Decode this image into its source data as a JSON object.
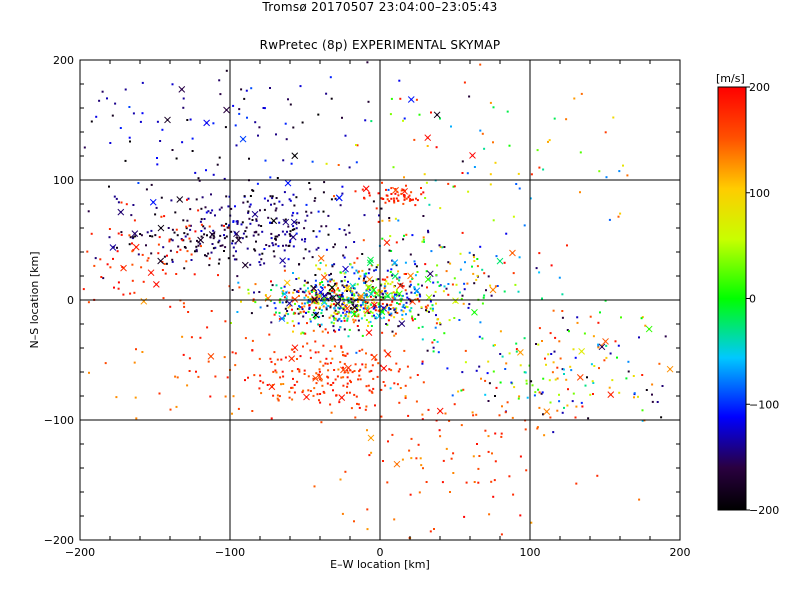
{
  "chart_data": {
    "type": "scatter",
    "title": "Tromsø 20170507 23:04:00–23:05:43",
    "subtitle": "RwPretec (8p) EXPERIMENTAL SKYMAP",
    "xlabel": "E–W location [km]",
    "ylabel": "N–S location [km]",
    "xlim": [
      -200,
      200
    ],
    "ylim": [
      -200,
      200
    ],
    "xticks": [
      "−200",
      "−100",
      "0",
      "100",
      "200"
    ],
    "yticks": [
      "200",
      "100",
      "0",
      "−100",
      "−200"
    ],
    "grid_lines": [
      -100,
      0,
      100
    ],
    "colorbar": {
      "label": "[m/s]",
      "range": [
        -200,
        200
      ],
      "ticks": [
        "200",
        "100",
        "0",
        "−100",
        "−200"
      ]
    },
    "clusters": [
      {
        "cx": -20,
        "cy": 0,
        "sx": 28,
        "sy": 12,
        "n": 700,
        "vmin": -200,
        "vmax": 200
      },
      {
        "cx": -30,
        "cy": -60,
        "sx": 25,
        "sy": 15,
        "n": 180,
        "vmin": 140,
        "vmax": 200
      },
      {
        "cx": -110,
        "cy": 55,
        "sx": 35,
        "sy": 15,
        "n": 200,
        "vmin": -200,
        "vmax": -130
      },
      {
        "cx": -150,
        "cy": 40,
        "sx": 25,
        "sy": 25,
        "n": 80,
        "vmin": 150,
        "vmax": 200
      },
      {
        "cx": 10,
        "cy": 88,
        "sx": 12,
        "sy": 4,
        "n": 60,
        "vmin": 150,
        "vmax": 200
      },
      {
        "cx": -60,
        "cy": 60,
        "sx": 30,
        "sy": 20,
        "n": 150,
        "vmin": -200,
        "vmax": -100
      },
      {
        "cx": 120,
        "cy": -60,
        "sx": 50,
        "sy": 25,
        "n": 200,
        "vmin": -200,
        "vmax": 200
      },
      {
        "cx": -100,
        "cy": 140,
        "sx": 60,
        "sy": 30,
        "n": 120,
        "vmin": -200,
        "vmax": -90
      },
      {
        "cx": 60,
        "cy": 110,
        "sx": 50,
        "sy": 40,
        "n": 90,
        "vmin": -100,
        "vmax": 200
      },
      {
        "cx": 50,
        "cy": -120,
        "sx": 45,
        "sy": 40,
        "n": 120,
        "vmin": 120,
        "vmax": 200
      },
      {
        "cx": 40,
        "cy": 20,
        "sx": 30,
        "sy": 20,
        "n": 140,
        "vmin": -200,
        "vmax": 200
      },
      {
        "cx": -90,
        "cy": -60,
        "sx": 40,
        "sy": 25,
        "n": 80,
        "vmin": 120,
        "vmax": 200
      }
    ],
    "crosses": 130,
    "seed": 20170507
  }
}
